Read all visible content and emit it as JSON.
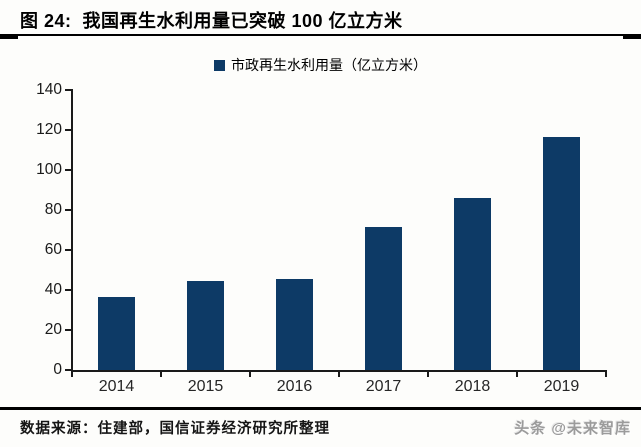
{
  "title": {
    "label": "图 24:  我国再生水利用量已突破 100 亿立方米"
  },
  "legend": {
    "marker_color": "#0D3A66",
    "label": "市政再生水利用量（亿立方米）"
  },
  "chart_data": {
    "type": "bar",
    "title": "市政再生水利用量（亿立方米）",
    "series_name": "市政再生水利用量",
    "unit": "亿立方米",
    "categories": [
      "2014",
      "2015",
      "2016",
      "2017",
      "2018",
      "2019"
    ],
    "values": [
      36.5,
      44.5,
      45.5,
      71.5,
      86,
      116.5
    ],
    "ylim": [
      0,
      140
    ],
    "yticks": [
      0,
      20,
      40,
      60,
      80,
      100,
      120,
      140
    ],
    "bar_color": "#0D3A66",
    "grid": false,
    "legend_position": "top-center"
  },
  "footer": {
    "source": "数据来源：住建部，国信证券经济研究所整理",
    "watermark": "头条 @未来智库"
  }
}
